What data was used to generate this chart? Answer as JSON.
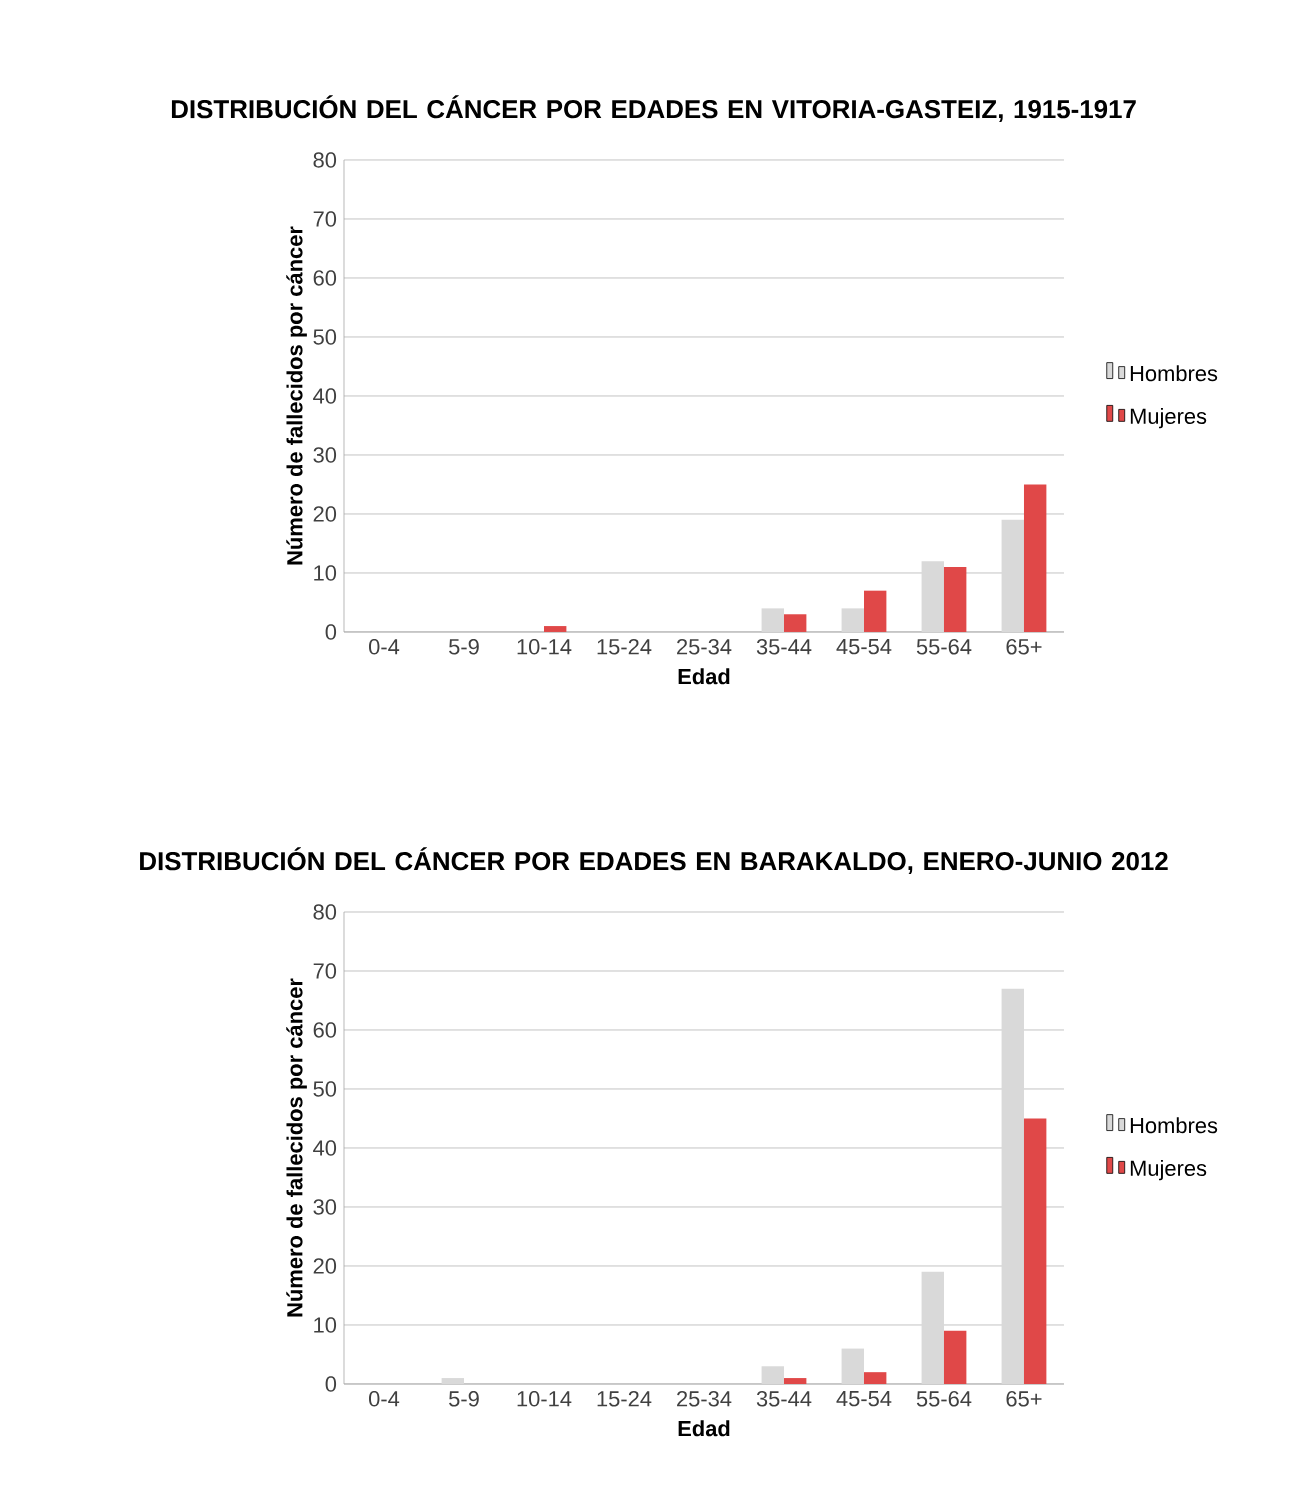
{
  "chart_data": [
    {
      "type": "bar",
      "title": "DISTRIBUCIÓN DEL CÁNCER POR EDADES EN VITORIA-GASTEIZ, 1915-1917",
      "xlabel": "Edad",
      "ylabel": "Número de fallecidos por cáncer",
      "categories": [
        "0-4",
        "5-9",
        "10-14",
        "15-24",
        "25-34",
        "35-44",
        "45-54",
        "55-64",
        "65+"
      ],
      "series": [
        {
          "name": "Hombres",
          "color": "#d9d9d9",
          "values": [
            0,
            0,
            0,
            0,
            0,
            4,
            4,
            12,
            19
          ]
        },
        {
          "name": "Mujeres",
          "color": "#e04848",
          "values": [
            0,
            0,
            1,
            0,
            0,
            3,
            7,
            11,
            25
          ]
        }
      ],
      "ylim": [
        0,
        80
      ],
      "yticks": [
        0,
        10,
        20,
        30,
        40,
        50,
        60,
        70,
        80
      ],
      "grid": "y",
      "legend": "right"
    },
    {
      "type": "bar",
      "title": "DISTRIBUCIÓN DEL CÁNCER POR EDADES EN BARAKALDO, ENERO-JUNIO 2012",
      "xlabel": "Edad",
      "ylabel": "Número de fallecidos por cáncer",
      "categories": [
        "0-4",
        "5-9",
        "10-14",
        "15-24",
        "25-34",
        "35-44",
        "45-54",
        "55-64",
        "65+"
      ],
      "series": [
        {
          "name": "Hombres",
          "color": "#d9d9d9",
          "values": [
            0,
            1,
            0,
            0,
            0,
            3,
            6,
            19,
            67
          ]
        },
        {
          "name": "Mujeres",
          "color": "#e04848",
          "values": [
            0,
            0,
            0,
            0,
            0,
            1,
            2,
            9,
            45
          ]
        }
      ],
      "ylim": [
        0,
        80
      ],
      "yticks": [
        0,
        10,
        20,
        30,
        40,
        50,
        60,
        70,
        80
      ],
      "grid": "y",
      "legend": "right"
    }
  ]
}
